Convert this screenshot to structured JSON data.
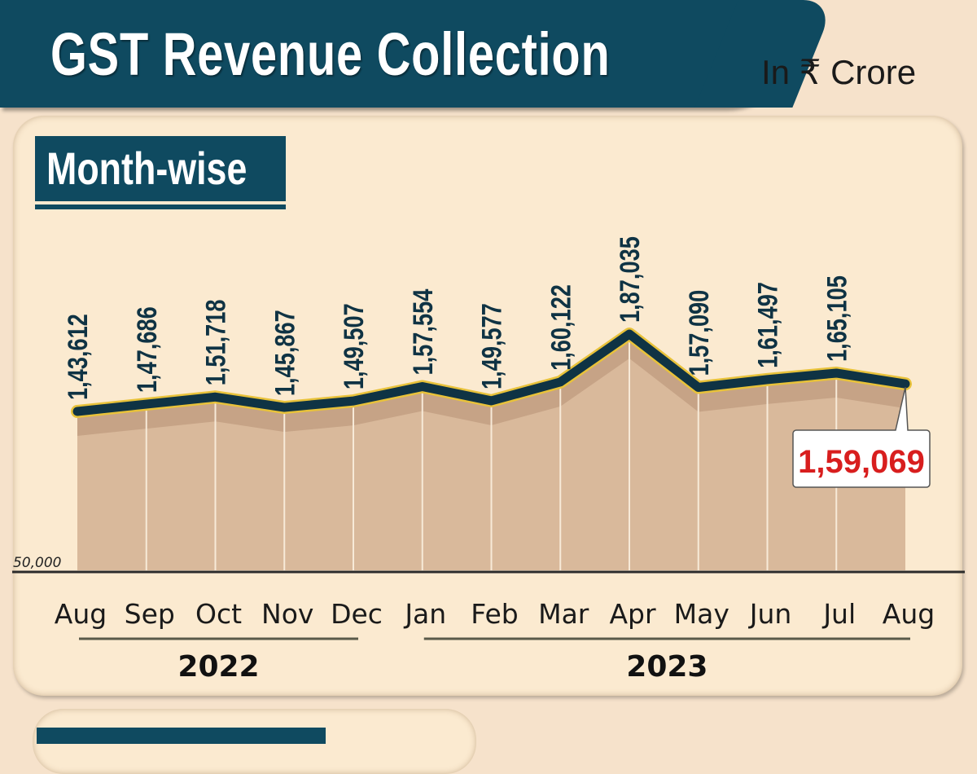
{
  "header": {
    "title": "GST Revenue Collection",
    "unit": "In ₹ Crore"
  },
  "chart_data": {
    "type": "area",
    "title": "Month-wise",
    "categories": [
      "Aug",
      "Sep",
      "Oct",
      "Nov",
      "Dec",
      "Jan",
      "Feb",
      "Mar",
      "Apr",
      "May",
      "Jun",
      "Jul",
      "Aug"
    ],
    "values": [
      143612,
      147686,
      151718,
      145867,
      149507,
      157554,
      149577,
      160122,
      187035,
      157090,
      161497,
      165105,
      159069
    ],
    "value_labels": [
      "1,43,612",
      "1,47,686",
      "1,51,718",
      "1,45,867",
      "1,49,507",
      "1,57,554",
      "1,49,577",
      "1,60,122",
      "1,87,035",
      "1,57,090",
      "1,61,497",
      "1,65,105",
      "1,59,069"
    ],
    "year_groups": [
      {
        "label": "2022",
        "months": [
          "Aug",
          "Sep",
          "Oct",
          "Nov",
          "Dec"
        ]
      },
      {
        "label": "2023",
        "months": [
          "Jan",
          "Feb",
          "Mar",
          "Apr",
          "May",
          "Jun",
          "Jul",
          "Aug"
        ]
      }
    ],
    "y_baseline_label": "50,000",
    "ylim": [
      50000,
      190000
    ],
    "highlight_index": 12,
    "colors": {
      "line": "#0f3344",
      "outline": "#e8c23a",
      "fill": "#d9b99b",
      "shadow": "#c6a386",
      "highlight": "#d81e1e"
    }
  }
}
